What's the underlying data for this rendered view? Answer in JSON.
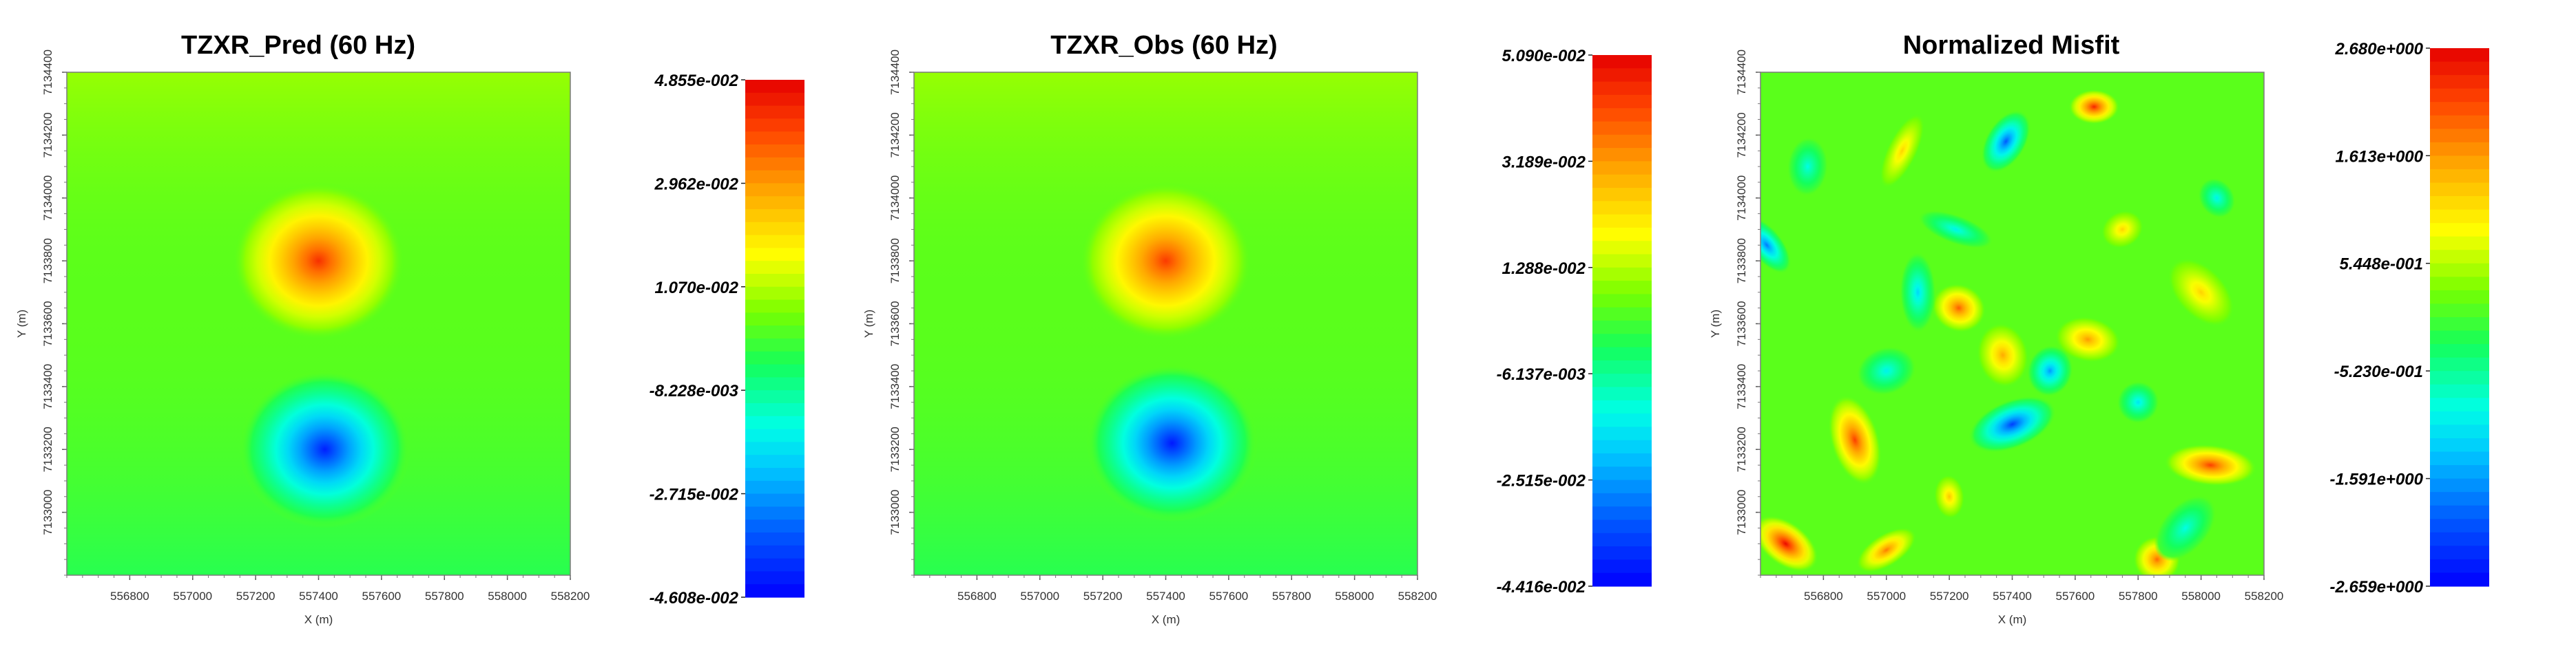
{
  "chart_data": [
    {
      "type": "heatmap",
      "title": "TZXR_Pred (60 Hz)",
      "xlabel": "X (m)",
      "ylabel": "Y (m)",
      "xlim": [
        556600,
        558200
      ],
      "ylim": [
        7132800,
        7134400
      ],
      "x_ticks": [
        "556800",
        "557000",
        "557200",
        "557400",
        "557600",
        "557800",
        "558000",
        "558200"
      ],
      "y_ticks": [
        "7133000",
        "7133200",
        "7133400",
        "7133600",
        "7133800",
        "7134000",
        "7134200",
        "7134400"
      ],
      "colorbar": {
        "min": -0.04608,
        "max": 0.04855,
        "tick_values": [
          0.04855,
          0.02962,
          0.0107,
          -0.008228,
          -0.02715,
          -0.04608
        ],
        "tick_labels": [
          "4.855e-002",
          "2.962e-002",
          "1.070e-002",
          "-8.228e-003",
          "-2.715e-002",
          "-4.608e-002"
        ]
      },
      "features": [
        {
          "kind": "maximum",
          "x": 557400,
          "y": 7133800,
          "value": 0.042
        },
        {
          "kind": "minimum",
          "x": 557420,
          "y": 7133200,
          "value": -0.042
        }
      ]
    },
    {
      "type": "heatmap",
      "title": "TZXR_Obs (60 Hz)",
      "xlabel": "X (m)",
      "ylabel": "Y (m)",
      "xlim": [
        556600,
        558200
      ],
      "ylim": [
        7132800,
        7134400
      ],
      "x_ticks": [
        "556800",
        "557000",
        "557200",
        "557400",
        "557600",
        "557800",
        "558000",
        "558200"
      ],
      "y_ticks": [
        "7133000",
        "7133200",
        "7133400",
        "7133600",
        "7133800",
        "7134000",
        "7134200",
        "7134400"
      ],
      "colorbar": {
        "min": -0.04416,
        "max": 0.0509,
        "tick_values": [
          0.0509,
          0.03189,
          0.01288,
          -0.006137,
          -0.02515,
          -0.04416
        ],
        "tick_labels": [
          "5.090e-002",
          "3.189e-002",
          "1.288e-002",
          "-6.137e-003",
          "-2.515e-002",
          "-4.416e-002"
        ]
      },
      "features": [
        {
          "kind": "maximum",
          "x": 557400,
          "y": 7133800,
          "value": 0.043
        },
        {
          "kind": "minimum",
          "x": 557420,
          "y": 7133220,
          "value": -0.041
        }
      ]
    },
    {
      "type": "heatmap",
      "title": "Normalized Misfit",
      "xlabel": "X (m)",
      "ylabel": "Y (m)",
      "xlim": [
        556600,
        558200
      ],
      "ylim": [
        7132800,
        7134400
      ],
      "x_ticks": [
        "556800",
        "557000",
        "557200",
        "557400",
        "557600",
        "557800",
        "558000",
        "558200"
      ],
      "y_ticks": [
        "7133000",
        "7133200",
        "7133400",
        "7133600",
        "7133800",
        "7134000",
        "7134200",
        "7134400"
      ],
      "colorbar": {
        "min": -2.659,
        "max": 2.68,
        "tick_values": [
          2.68,
          1.613,
          0.5448,
          -0.523,
          -1.591,
          -2.659
        ],
        "tick_labels": [
          "2.680e+000",
          "1.613e+000",
          "5.448e-001",
          "-5.230e-001",
          "-1.591e+000",
          "-2.659e+000"
        ]
      },
      "features": [
        {
          "kind": "maximum",
          "x": 557660,
          "y": 7134290,
          "value": 2.4
        },
        {
          "kind": "maximum",
          "x": 556680,
          "y": 7132900,
          "value": 2.6
        },
        {
          "kind": "maximum",
          "x": 556900,
          "y": 7133230,
          "value": 2.2
        },
        {
          "kind": "maximum",
          "x": 557230,
          "y": 7133650,
          "value": 2.0
        },
        {
          "kind": "maximum",
          "x": 557000,
          "y": 7132880,
          "value": 1.8
        },
        {
          "kind": "maximum",
          "x": 558030,
          "y": 7133150,
          "value": 2.2
        },
        {
          "kind": "maximum",
          "x": 557860,
          "y": 7132850,
          "value": 1.9
        },
        {
          "kind": "maximum",
          "x": 557370,
          "y": 7133500,
          "value": 1.5
        },
        {
          "kind": "maximum",
          "x": 557050,
          "y": 7134150,
          "value": 1.2
        },
        {
          "kind": "maximum",
          "x": 557750,
          "y": 7133900,
          "value": 1.2
        },
        {
          "kind": "maximum",
          "x": 557640,
          "y": 7133550,
          "value": 1.6
        },
        {
          "kind": "maximum",
          "x": 558000,
          "y": 7133700,
          "value": 1.2
        },
        {
          "kind": "maximum",
          "x": 557200,
          "y": 7133050,
          "value": 1.3
        },
        {
          "kind": "minimum",
          "x": 557380,
          "y": 7134180,
          "value": -2.0
        },
        {
          "kind": "minimum",
          "x": 557400,
          "y": 7133280,
          "value": -2.2
        },
        {
          "kind": "minimum",
          "x": 557520,
          "y": 7133450,
          "value": -1.6
        },
        {
          "kind": "minimum",
          "x": 556620,
          "y": 7133850,
          "value": -1.8
        },
        {
          "kind": "minimum",
          "x": 557100,
          "y": 7133700,
          "value": -1.2
        },
        {
          "kind": "minimum",
          "x": 557800,
          "y": 7133350,
          "value": -1.1
        },
        {
          "kind": "minimum",
          "x": 557000,
          "y": 7133450,
          "value": -1.0
        },
        {
          "kind": "minimum",
          "x": 557220,
          "y": 7133900,
          "value": -1.0
        },
        {
          "kind": "minimum",
          "x": 558050,
          "y": 7134000,
          "value": -1.0
        },
        {
          "kind": "minimum",
          "x": 556750,
          "y": 7134100,
          "value": -0.9
        },
        {
          "kind": "minimum",
          "x": 557950,
          "y": 7132950,
          "value": -0.9
        }
      ]
    }
  ]
}
